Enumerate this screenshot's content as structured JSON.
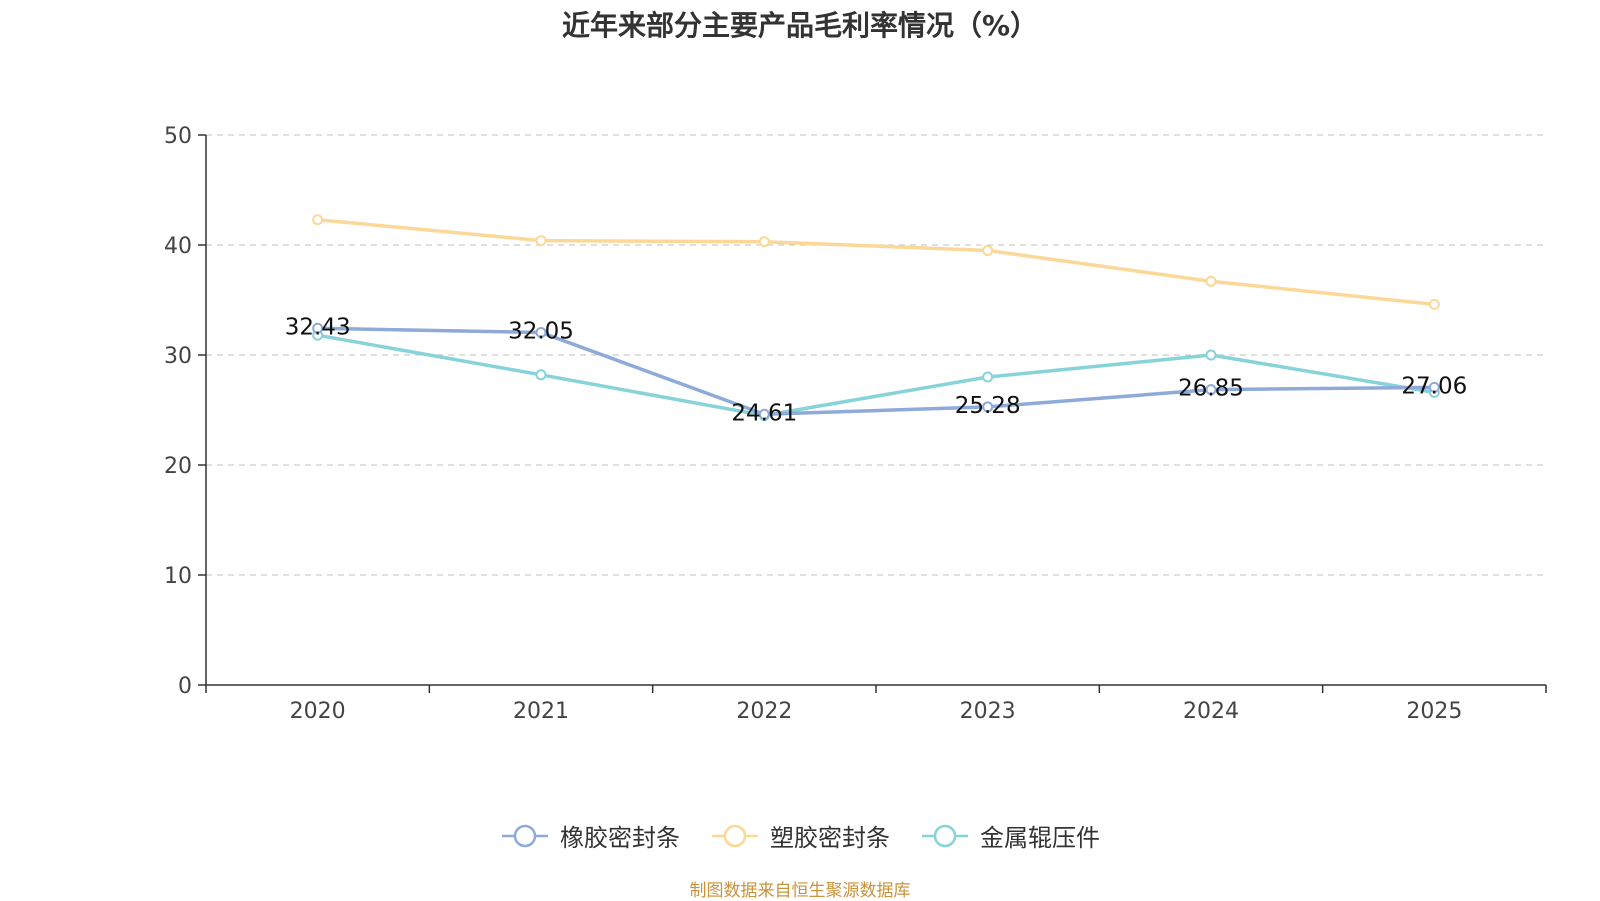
{
  "chart_data": {
    "type": "line",
    "title": "近年来部分主要产品毛利率情况（%）",
    "categories": [
      "2020",
      "2021",
      "2022",
      "2023",
      "2024",
      "2025"
    ],
    "ylim": [
      0,
      50
    ],
    "yticks": [
      0,
      10,
      20,
      30,
      40,
      50
    ],
    "grid": true,
    "legend_position": "bottom",
    "series": [
      {
        "name": "橡胶密封条",
        "color": "#8eaad8",
        "values": [
          32.43,
          32.05,
          24.61,
          25.28,
          26.85,
          27.06
        ],
        "labels": true
      },
      {
        "name": "塑胶密封条",
        "color": "#fbd898",
        "values": [
          42.3,
          40.4,
          40.3,
          39.5,
          36.7,
          34.6
        ],
        "labels": false
      },
      {
        "name": "金属辊压件",
        "color": "#86d3d9",
        "values": [
          31.8,
          28.2,
          24.5,
          28.0,
          30.0,
          26.6
        ],
        "labels": false
      }
    ]
  },
  "source": "制图数据来自恒生聚源数据库"
}
